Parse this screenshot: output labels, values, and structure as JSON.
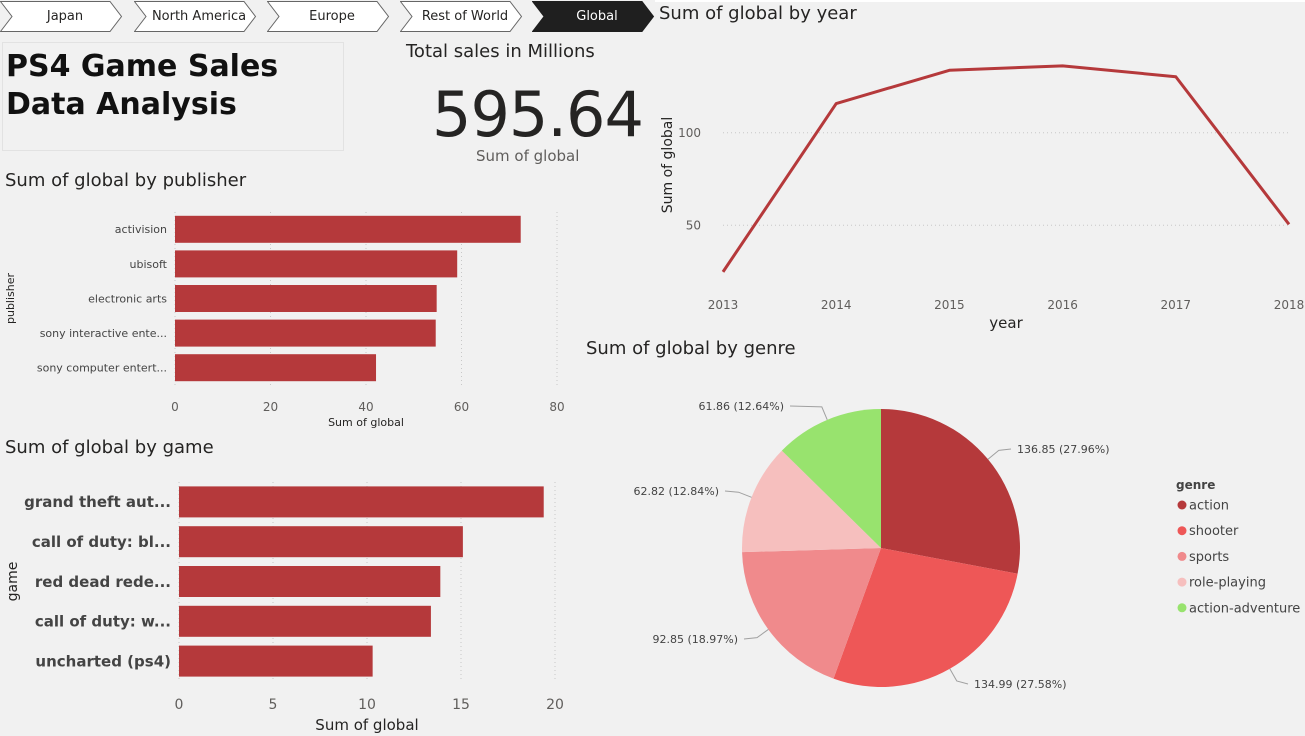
{
  "tabs": [
    {
      "label": "Japan",
      "active": false
    },
    {
      "label": "North America",
      "active": false
    },
    {
      "label": "Europe",
      "active": false
    },
    {
      "label": "Rest of World",
      "active": false
    },
    {
      "label": "Global",
      "active": true
    }
  ],
  "report_title": "PS4 Game Sales Data Analysis",
  "kpi": {
    "title": "Total sales in Millions",
    "value": "595.64",
    "label": "Sum of global"
  },
  "colors": {
    "bar": "#b5393b",
    "line": "#b5393b",
    "active_tab": "#1f1f1f"
  },
  "chart_data": [
    {
      "id": "publisher",
      "type": "bar",
      "orientation": "horizontal",
      "title": "Sum of global by publisher",
      "xlabel": "Sum of global",
      "ylabel": "publisher",
      "categories": [
        "activision",
        "ubisoft",
        "electronic arts",
        "sony interactive ente...",
        "sony computer entert..."
      ],
      "values": [
        72.4,
        59.1,
        54.8,
        54.6,
        42.1
      ],
      "xlim": [
        0,
        80
      ],
      "xticks": [
        0,
        20,
        40,
        60,
        80
      ],
      "grid": true
    },
    {
      "id": "game",
      "type": "bar",
      "orientation": "horizontal",
      "title": "Sum of global by game",
      "xlabel": "Sum of global",
      "ylabel": "game",
      "categories": [
        "grand theft aut...",
        "call of duty: bl...",
        "red dead rede...",
        "call of duty: w...",
        "uncharted (ps4)"
      ],
      "values": [
        19.4,
        15.1,
        13.9,
        13.4,
        10.3
      ],
      "xlim": [
        0,
        20
      ],
      "xticks": [
        0,
        5,
        10,
        15,
        20
      ],
      "grid": true
    },
    {
      "id": "year",
      "type": "line",
      "title": "Sum of global by year",
      "xlabel": "year",
      "ylabel": "Sum of global",
      "x": [
        2013,
        2014,
        2015,
        2016,
        2017,
        2018
      ],
      "series": [
        {
          "values": [
            24.8,
            115.8,
            133.8,
            136.2,
            130.3,
            50.5
          ]
        }
      ],
      "yticks": [
        50,
        100
      ],
      "grid": true
    },
    {
      "id": "genre",
      "type": "pie",
      "title": "Sum of global by genre",
      "legend_title": "genre",
      "legend_position": "right",
      "slices": [
        {
          "name": "action",
          "value": 136.85,
          "label": "136.85 (27.96%)",
          "color": "#b5393b"
        },
        {
          "name": "shooter",
          "value": 134.99,
          "label": "134.99 (27.58%)",
          "color": "#ee5757"
        },
        {
          "name": "sports",
          "value": 92.85,
          "label": "92.85 (18.97%)",
          "color": "#f08a8c"
        },
        {
          "name": "role-playing",
          "value": 62.82,
          "label": "62.82 (12.84%)",
          "color": "#f6bfbe"
        },
        {
          "name": "action-adventure",
          "value": 61.86,
          "label": "61.86 (12.64%)",
          "color": "#98e36e"
        }
      ]
    }
  ]
}
